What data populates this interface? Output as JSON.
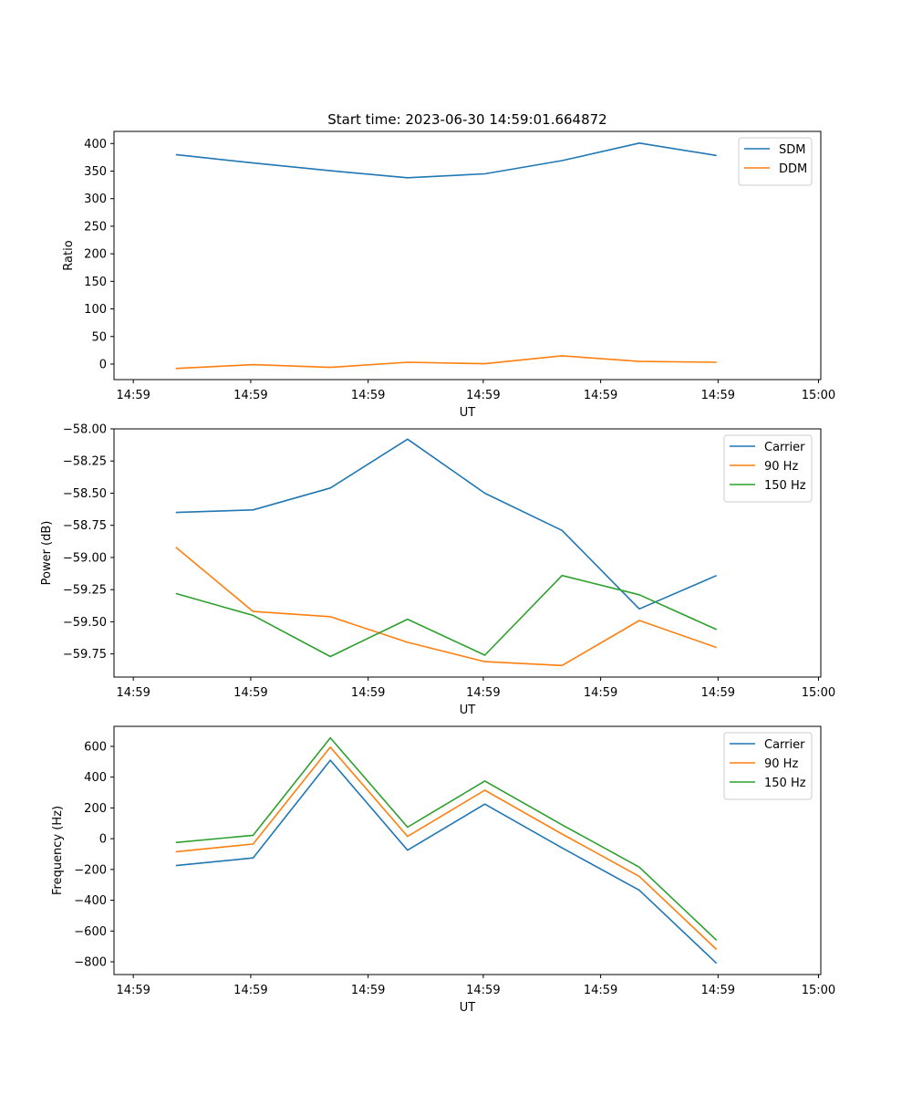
{
  "colors": {
    "series1": "#1f77b4",
    "series2": "#ff7f0e",
    "series3": "#2ca02c"
  },
  "chart_data": [
    {
      "type": "line",
      "title": "Start time: 2023-06-30 14:59:01.664872",
      "xlabel": "UT",
      "ylabel": "Ratio",
      "x": [
        1,
        2,
        3,
        4,
        5,
        6,
        7,
        8
      ],
      "xlim": [
        0.2,
        9.35
      ],
      "ylim": [
        -28.2,
        422.0
      ],
      "yticks": [
        0,
        50,
        100,
        150,
        200,
        250,
        300,
        350,
        400
      ],
      "ytick_labels": [
        "0",
        "50",
        "100",
        "150",
        "200",
        "250",
        "300",
        "350",
        "400"
      ],
      "xticks": [
        0.45,
        1.97,
        3.49,
        4.98,
        6.5,
        8.02,
        9.32
      ],
      "xtick_labels": [
        "14:59",
        "14:59",
        "14:59",
        "14:59",
        "14:59",
        "14:59",
        "15:00"
      ],
      "legend_position": "top-right",
      "series": [
        {
          "name": "SDM",
          "values": [
            380,
            364.7,
            350.7,
            338,
            345,
            369,
            400.8,
            378.3
          ]
        },
        {
          "name": "DDM",
          "values": [
            -8,
            -1,
            -6,
            3.3,
            0.6,
            15,
            4.7,
            3.3
          ]
        }
      ]
    },
    {
      "type": "line",
      "title": "",
      "xlabel": "UT",
      "ylabel": "Power (dB)",
      "x": [
        1,
        2,
        3,
        4,
        5,
        6,
        7,
        8
      ],
      "xlim": [
        0.2,
        9.35
      ],
      "ylim": [
        -59.93,
        -58.0
      ],
      "yticks": [
        -58.0,
        -58.25,
        -58.5,
        -58.75,
        -59.0,
        -59.25,
        -59.5,
        -59.75
      ],
      "ytick_labels": [
        "−58.00",
        "−58.25",
        "−58.50",
        "−58.75",
        "−59.00",
        "−59.25",
        "−59.50",
        "−59.75"
      ],
      "xticks": [
        0.45,
        1.97,
        3.49,
        4.98,
        6.5,
        8.02,
        9.32
      ],
      "xtick_labels": [
        "14:59",
        "14:59",
        "14:59",
        "14:59",
        "14:59",
        "14:59",
        "15:00"
      ],
      "legend_position": "top-right",
      "series": [
        {
          "name": "Carrier",
          "values": [
            -58.65,
            -58.63,
            -58.46,
            -58.08,
            -58.5,
            -58.79,
            -59.4,
            -59.14
          ]
        },
        {
          "name": "90 Hz",
          "values": [
            -58.92,
            -59.42,
            -59.46,
            -59.66,
            -59.81,
            -59.84,
            -59.49,
            -59.7
          ]
        },
        {
          "name": "150 Hz",
          "values": [
            -59.28,
            -59.45,
            -59.77,
            -59.48,
            -59.76,
            -59.14,
            -59.29,
            -59.56
          ]
        }
      ]
    },
    {
      "type": "line",
      "title": "",
      "xlabel": "UT",
      "ylabel": "Frequency (Hz)",
      "x": [
        1,
        2,
        3,
        4,
        5,
        6,
        7,
        8
      ],
      "xlim": [
        0.2,
        9.35
      ],
      "ylim": [
        -883,
        730
      ],
      "yticks": [
        600,
        400,
        200,
        0,
        -200,
        -400,
        -600,
        -800
      ],
      "ytick_labels": [
        "600",
        "400",
        "200",
        "0",
        "−200",
        "−400",
        "−600",
        "−800"
      ],
      "xticks": [
        0.45,
        1.97,
        3.49,
        4.98,
        6.5,
        8.02,
        9.32
      ],
      "xtick_labels": [
        "14:59",
        "14:59",
        "14:59",
        "14:59",
        "14:59",
        "14:59",
        "15:00"
      ],
      "legend_position": "top-right",
      "series": [
        {
          "name": "Carrier",
          "values": [
            -175,
            -125,
            510,
            -75,
            225,
            -60,
            -335,
            -810
          ]
        },
        {
          "name": "90 Hz",
          "values": [
            -85,
            -35,
            595,
            15,
            315,
            30,
            -245,
            -720
          ]
        },
        {
          "name": "150 Hz",
          "values": [
            -25,
            22,
            655,
            75,
            375,
            90,
            -185,
            -660
          ]
        }
      ]
    }
  ]
}
